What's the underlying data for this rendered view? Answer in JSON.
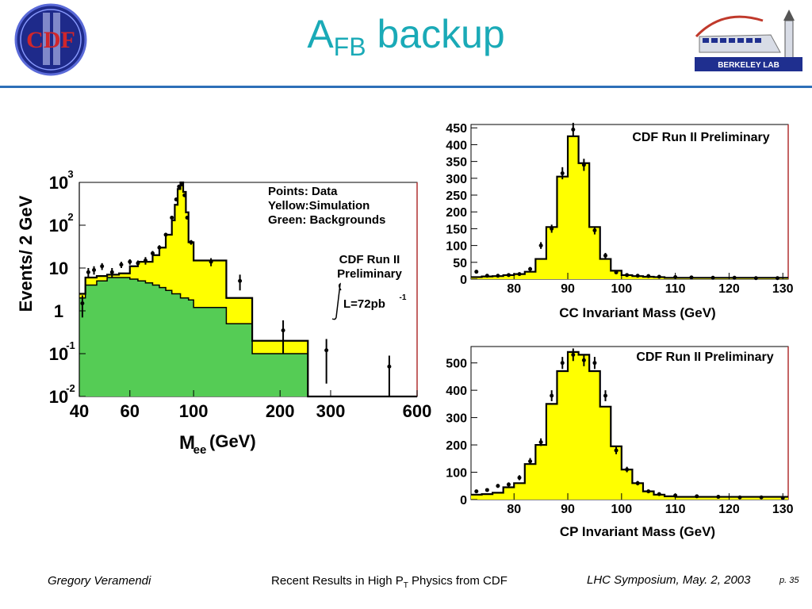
{
  "header": {
    "title_main": "A",
    "title_sub": "FB",
    "title_rest": " backup",
    "logo_left_text": "CDF",
    "logo_right_text": "BERKELEY LAB"
  },
  "footer": {
    "author": "Gregory Veramendi",
    "talk_pre": "Recent Results in High P",
    "talk_sub": "T",
    "talk_post": " Physics from CDF",
    "venue": "LHC Symposium, May. 2, 2003",
    "page": "p. 35"
  },
  "chart_data": [
    {
      "type": "histogram",
      "xlabel_main": "M",
      "xlabel_sub": "ee",
      "xlabel_unit": " (GeV)",
      "ylabel": "Events/ 2 GeV",
      "x_scale": "log",
      "y_scale": "log",
      "xlim": [
        40,
        600
      ],
      "ylim": [
        0.01,
        1000
      ],
      "x_tick_labels": [
        "40",
        "60",
        "100",
        "200",
        "300",
        "600"
      ],
      "x_tick_values": [
        40,
        60,
        100,
        200,
        300,
        600
      ],
      "y_tick_labels": [
        {
          "base": "10",
          "exp": "3",
          "value": 1000
        },
        {
          "base": "10",
          "exp": "2",
          "value": 100
        },
        {
          "base": "10",
          "exp": "",
          "value": 10
        },
        {
          "base": "1",
          "exp": "",
          "value": 1
        },
        {
          "base": "10",
          "exp": "-1",
          "value": 0.1
        },
        {
          "base": "10",
          "exp": "-2",
          "value": 0.01
        }
      ],
      "legend": [
        "Points: Data",
        "Yellow:Simulation",
        "Green: Backgrounds"
      ],
      "annotation": [
        "CDF Run II",
        "Preliminary"
      ],
      "luminosity": "L=72pb",
      "luminosity_exp": "-1",
      "series": [
        {
          "name": "Simulation",
          "color": "#ffff00",
          "bins": [
            [
              40,
              42,
              2.5
            ],
            [
              42,
              46,
              6
            ],
            [
              46,
              50,
              6.5
            ],
            [
              50,
              55,
              7
            ],
            [
              55,
              60,
              7.5
            ],
            [
              60,
              64,
              11
            ],
            [
              64,
              68,
              14
            ],
            [
              68,
              72,
              14
            ],
            [
              72,
              76,
              20
            ],
            [
              76,
              80,
              30
            ],
            [
              80,
              84,
              60
            ],
            [
              84,
              86,
              130
            ],
            [
              86,
              88,
              300
            ],
            [
              88,
              90,
              700
            ],
            [
              90,
              92,
              1000
            ],
            [
              92,
              94,
              600
            ],
            [
              94,
              96,
              200
            ],
            [
              96,
              100,
              40
            ],
            [
              100,
              130,
              15
            ],
            [
              130,
              160,
              2
            ],
            [
              160,
              250,
              0.2
            ],
            [
              250,
              350,
              0.004
            ],
            [
              350,
              600,
              0.0055
            ]
          ]
        },
        {
          "name": "Backgrounds",
          "color": "#55cc55",
          "bins": [
            [
              40,
              42,
              2
            ],
            [
              42,
              46,
              4
            ],
            [
              46,
              50,
              5
            ],
            [
              50,
              55,
              6
            ],
            [
              55,
              60,
              6
            ],
            [
              60,
              64,
              5.5
            ],
            [
              64,
              68,
              5
            ],
            [
              68,
              72,
              4.5
            ],
            [
              72,
              76,
              4
            ],
            [
              76,
              80,
              3.5
            ],
            [
              80,
              84,
              3
            ],
            [
              84,
              90,
              2.5
            ],
            [
              90,
              96,
              2
            ],
            [
              96,
              100,
              1.8
            ],
            [
              100,
              130,
              1.2
            ],
            [
              130,
              160,
              0.5
            ],
            [
              160,
              250,
              0.1
            ],
            [
              250,
              350,
              0.003
            ]
          ]
        }
      ],
      "data_points": [
        {
          "x": 41,
          "y": 1.5,
          "err": 0.8
        },
        {
          "x": 43,
          "y": 8,
          "err": 2
        },
        {
          "x": 45,
          "y": 9,
          "err": 2
        },
        {
          "x": 48,
          "y": 11,
          "err": 2
        },
        {
          "x": 52,
          "y": 8,
          "err": 2
        },
        {
          "x": 56,
          "y": 12,
          "err": 2
        },
        {
          "x": 60,
          "y": 14,
          "err": 2
        },
        {
          "x": 64,
          "y": 13,
          "err": 2
        },
        {
          "x": 68,
          "y": 15,
          "err": 3
        },
        {
          "x": 72,
          "y": 22,
          "err": 3
        },
        {
          "x": 76,
          "y": 30,
          "err": 4
        },
        {
          "x": 80,
          "y": 60,
          "err": 6
        },
        {
          "x": 84,
          "y": 150,
          "err": 10
        },
        {
          "x": 87,
          "y": 400,
          "err": 20
        },
        {
          "x": 89,
          "y": 800,
          "err": 30
        },
        {
          "x": 91,
          "y": 900,
          "err": 30
        },
        {
          "x": 93,
          "y": 500,
          "err": 20
        },
        {
          "x": 95,
          "y": 150,
          "err": 10
        },
        {
          "x": 98,
          "y": 40,
          "err": 5
        },
        {
          "x": 115,
          "y": 14,
          "err": 3
        },
        {
          "x": 145,
          "y": 5,
          "err": 2
        },
        {
          "x": 205,
          "y": 0.35,
          "err": 0.25
        },
        {
          "x": 290,
          "y": 0.12,
          "err": 0.1
        },
        {
          "x": 480,
          "y": 0.05,
          "err": 0.04
        }
      ]
    },
    {
      "type": "histogram",
      "title": "CDF Run II Preliminary",
      "xlabel": "CC Invariant Mass (GeV)",
      "xlim": [
        72,
        131
      ],
      "ylim": [
        0,
        460
      ],
      "x_tick_labels": [
        "80",
        "90",
        "100",
        "110",
        "120",
        "130"
      ],
      "x_tick_values": [
        80,
        90,
        100,
        110,
        120,
        130
      ],
      "y_tick_labels": [
        "450",
        "400",
        "350",
        "300",
        "250",
        "200",
        "150",
        "100",
        "50",
        "0"
      ],
      "y_tick_values": [
        450,
        400,
        350,
        300,
        250,
        200,
        150,
        100,
        50,
        0
      ],
      "series": [
        {
          "name": "Simulation",
          "color": "#ffff00",
          "bins": [
            [
              72,
              74,
              6
            ],
            [
              74,
              76,
              8
            ],
            [
              76,
              78,
              9
            ],
            [
              78,
              80,
              12
            ],
            [
              80,
              82,
              15
            ],
            [
              82,
              84,
              22
            ],
            [
              84,
              86,
              60
            ],
            [
              86,
              88,
              155
            ],
            [
              88,
              90,
              305
            ],
            [
              90,
              92,
              425
            ],
            [
              92,
              94,
              345
            ],
            [
              94,
              96,
              155
            ],
            [
              96,
              98,
              60
            ],
            [
              98,
              100,
              25
            ],
            [
              100,
              102,
              12
            ],
            [
              102,
              104,
              9
            ],
            [
              104,
              106,
              7
            ],
            [
              106,
              108,
              6
            ],
            [
              108,
              131,
              4
            ]
          ]
        }
      ],
      "data_points": [
        {
          "x": 73,
          "y": 22,
          "err": 5
        },
        {
          "x": 75,
          "y": 10,
          "err": 3
        },
        {
          "x": 77,
          "y": 10,
          "err": 3
        },
        {
          "x": 79,
          "y": 12,
          "err": 3
        },
        {
          "x": 81,
          "y": 15,
          "err": 4
        },
        {
          "x": 83,
          "y": 30,
          "err": 6
        },
        {
          "x": 85,
          "y": 100,
          "err": 10
        },
        {
          "x": 87,
          "y": 150,
          "err": 12
        },
        {
          "x": 89,
          "y": 315,
          "err": 18
        },
        {
          "x": 91,
          "y": 445,
          "err": 20
        },
        {
          "x": 93,
          "y": 340,
          "err": 18
        },
        {
          "x": 95,
          "y": 145,
          "err": 12
        },
        {
          "x": 97,
          "y": 70,
          "err": 8
        },
        {
          "x": 99,
          "y": 20,
          "err": 4
        },
        {
          "x": 101,
          "y": 12,
          "err": 3
        },
        {
          "x": 103,
          "y": 10,
          "err": 3
        },
        {
          "x": 105,
          "y": 9,
          "err": 3
        },
        {
          "x": 107,
          "y": 7,
          "err": 2
        },
        {
          "x": 110,
          "y": 6,
          "err": 2
        },
        {
          "x": 113,
          "y": 5,
          "err": 2
        },
        {
          "x": 117,
          "y": 4,
          "err": 2
        },
        {
          "x": 121,
          "y": 4,
          "err": 2
        },
        {
          "x": 125,
          "y": 3,
          "err": 2
        },
        {
          "x": 129,
          "y": 3,
          "err": 2
        }
      ]
    },
    {
      "type": "histogram",
      "title": "CDF Run II Preliminary",
      "xlabel": "CP Invariant Mass (GeV)",
      "xlim": [
        72,
        131
      ],
      "ylim": [
        0,
        560
      ],
      "x_tick_labels": [
        "80",
        "90",
        "100",
        "110",
        "120",
        "130"
      ],
      "x_tick_values": [
        80,
        90,
        100,
        110,
        120,
        130
      ],
      "y_tick_labels": [
        "500",
        "400",
        "300",
        "200",
        "100",
        "0"
      ],
      "y_tick_values": [
        500,
        400,
        300,
        200,
        100,
        0
      ],
      "series": [
        {
          "name": "Simulation",
          "color": "#ffff00",
          "bins": [
            [
              72,
              74,
              18
            ],
            [
              74,
              76,
              20
            ],
            [
              76,
              78,
              25
            ],
            [
              78,
              80,
              45
            ],
            [
              80,
              82,
              60
            ],
            [
              82,
              84,
              130
            ],
            [
              84,
              86,
              200
            ],
            [
              86,
              88,
              350
            ],
            [
              88,
              90,
              470
            ],
            [
              90,
              92,
              540
            ],
            [
              92,
              94,
              530
            ],
            [
              94,
              96,
              470
            ],
            [
              96,
              98,
              340
            ],
            [
              98,
              100,
              195
            ],
            [
              100,
              102,
              110
            ],
            [
              102,
              104,
              60
            ],
            [
              104,
              106,
              30
            ],
            [
              106,
              108,
              18
            ],
            [
              108,
              110,
              12
            ],
            [
              110,
              131,
              10
            ]
          ]
        }
      ],
      "data_points": [
        {
          "x": 73,
          "y": 30,
          "err": 6
        },
        {
          "x": 75,
          "y": 35,
          "err": 6
        },
        {
          "x": 77,
          "y": 50,
          "err": 7
        },
        {
          "x": 79,
          "y": 55,
          "err": 8
        },
        {
          "x": 81,
          "y": 80,
          "err": 9
        },
        {
          "x": 83,
          "y": 140,
          "err": 12
        },
        {
          "x": 85,
          "y": 210,
          "err": 14
        },
        {
          "x": 87,
          "y": 380,
          "err": 20
        },
        {
          "x": 89,
          "y": 500,
          "err": 22
        },
        {
          "x": 91,
          "y": 530,
          "err": 23
        },
        {
          "x": 93,
          "y": 510,
          "err": 22
        },
        {
          "x": 95,
          "y": 500,
          "err": 22
        },
        {
          "x": 97,
          "y": 380,
          "err": 20
        },
        {
          "x": 99,
          "y": 180,
          "err": 14
        },
        {
          "x": 101,
          "y": 110,
          "err": 10
        },
        {
          "x": 103,
          "y": 60,
          "err": 8
        },
        {
          "x": 105,
          "y": 30,
          "err": 6
        },
        {
          "x": 107,
          "y": 20,
          "err": 5
        },
        {
          "x": 110,
          "y": 15,
          "err": 4
        },
        {
          "x": 114,
          "y": 12,
          "err": 4
        },
        {
          "x": 118,
          "y": 10,
          "err": 3
        },
        {
          "x": 122,
          "y": 8,
          "err": 3
        },
        {
          "x": 126,
          "y": 8,
          "err": 3
        },
        {
          "x": 130,
          "y": 6,
          "err": 3
        }
      ]
    }
  ]
}
